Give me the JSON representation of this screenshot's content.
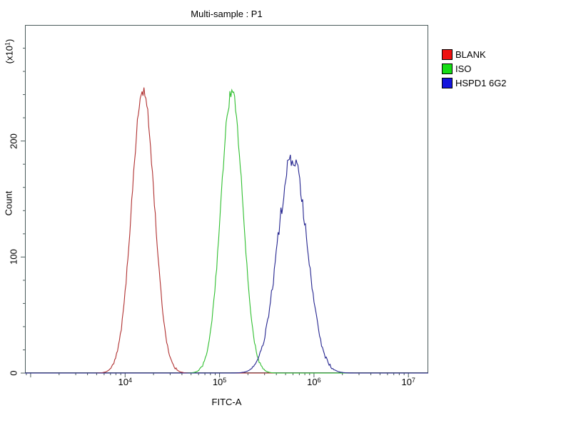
{
  "title": "Multi-sample : P1",
  "style": {
    "frame_color": "#4a5a5a",
    "background": "#ffffff",
    "text_color": "#000000"
  },
  "axes": {
    "x": {
      "label": "FITC-A",
      "scale": "log10",
      "decade_ticks": [
        3,
        4,
        5,
        6,
        7
      ],
      "labeled_ticks": [
        4,
        5,
        6,
        7
      ],
      "tick_base": "10",
      "range_log10": [
        2.94,
        7.21
      ]
    },
    "y": {
      "label": "Count",
      "unit_prefix": "(x10",
      "unit_exp": "1",
      "unit_suffix": ")",
      "major_ticks": [
        0,
        100,
        200
      ],
      "minor_step": 20,
      "range": [
        0,
        300
      ]
    }
  },
  "legend": [
    {
      "label": "BLANK",
      "color": "#ee1111"
    },
    {
      "label": "ISO",
      "color": "#15dd15"
    },
    {
      "label": "HSPD1 6G2",
      "color": "#1515dd"
    }
  ],
  "chart_data": {
    "type": "line",
    "subtype": "flow-cytometry-overlay-histogram",
    "title": "Multi-sample : P1",
    "xlabel": "FITC-A",
    "ylabel": "Count (x10^1)",
    "x_scale": "log10",
    "xlim_log10": [
      2.94,
      7.21
    ],
    "ylim": [
      0,
      300
    ],
    "grid": false,
    "legend_position": "right-outside",
    "series": [
      {
        "name": "BLANK",
        "color": "#b03030",
        "peak_x": 16000,
        "mu_log10": 4.19,
        "sd_log10": 0.12,
        "peak_height": 243,
        "jitter": 0.018
      },
      {
        "name": "ISO",
        "color": "#2fbf2f",
        "peak_x": 135000,
        "mu_log10": 5.13,
        "sd_log10": 0.115,
        "peak_height": 242,
        "jitter": 0.018
      },
      {
        "name": "HSPD1 6G2",
        "color": "#24248f",
        "peak_x": 600000,
        "mu_log10": 5.77,
        "sd_log10": 0.155,
        "peak_height": 185,
        "jitter": 0.04
      }
    ]
  }
}
